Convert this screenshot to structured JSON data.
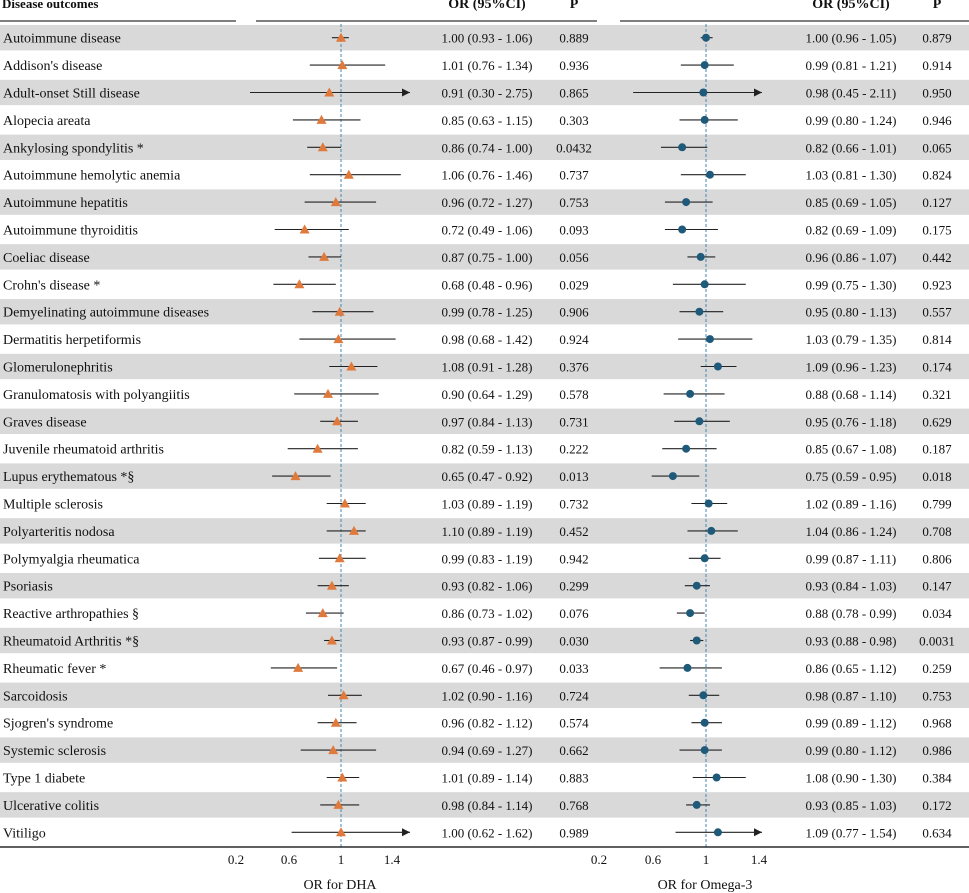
{
  "header": {
    "outcome_label": "Disease outcomes",
    "or_label_left": "OR (95%CI)",
    "p_label_left": "P",
    "or_label_right": "OR (95%CI)",
    "p_label_right": "P"
  },
  "axes": {
    "dha_xlabel": "OR for DHA",
    "omega_xlabel": "OR for Omega-3",
    "ticks": [
      "0.2",
      "0.6",
      "1",
      "1.4"
    ],
    "tick_values": [
      0.2,
      0.6,
      1.0,
      1.4
    ]
  },
  "colors": {
    "dha_marker": "#e07a3c",
    "omega_marker": "#1f5a7a",
    "stripe": "#d9d9d9",
    "reference_line": "#4a86b0",
    "ci_line": "#222222"
  },
  "chart_data": {
    "type": "forest",
    "reference_value": 1.0,
    "panels": [
      {
        "name": "OR for DHA",
        "marker": "triangle",
        "xlim": [
          0.2,
          1.4
        ]
      },
      {
        "name": "OR for Omega-3",
        "marker": "circle",
        "xlim": [
          0.2,
          1.4
        ]
      }
    ],
    "rows": [
      {
        "label": "Autoimmune disease",
        "dha": {
          "or": 1.0,
          "lo": 0.93,
          "hi": 1.06,
          "text": "1.00 (0.93 - 1.06)",
          "p": "0.889"
        },
        "omega": {
          "or": 1.0,
          "lo": 0.96,
          "hi": 1.05,
          "text": "1.00 (0.96 - 1.05)",
          "p": "0.879"
        }
      },
      {
        "label": "Addison's disease",
        "dha": {
          "or": 1.01,
          "lo": 0.76,
          "hi": 1.34,
          "text": "1.01 (0.76 - 1.34)",
          "p": "0.936"
        },
        "omega": {
          "or": 0.99,
          "lo": 0.81,
          "hi": 1.21,
          "text": "0.99 (0.81 - 1.21)",
          "p": "0.914"
        }
      },
      {
        "label": "Adult-onset Still disease",
        "dha": {
          "or": 0.91,
          "lo": 0.3,
          "hi": 2.75,
          "text": "0.91 (0.30 - 2.75)",
          "p": "0.865"
        },
        "omega": {
          "or": 0.98,
          "lo": 0.45,
          "hi": 2.11,
          "text": "0.98 (0.45 - 2.11)",
          "p": "0.950"
        }
      },
      {
        "label": "Alopecia areata",
        "dha": {
          "or": 0.85,
          "lo": 0.63,
          "hi": 1.15,
          "text": "0.85 (0.63 - 1.15)",
          "p": "0.303"
        },
        "omega": {
          "or": 0.99,
          "lo": 0.8,
          "hi": 1.24,
          "text": "0.99 (0.80 - 1.24)",
          "p": "0.946"
        }
      },
      {
        "label": "Ankylosing spondylitis *",
        "dha": {
          "or": 0.86,
          "lo": 0.74,
          "hi": 1.0,
          "text": "0.86 (0.74 - 1.00)",
          "p": "0.0432"
        },
        "omega": {
          "or": 0.82,
          "lo": 0.66,
          "hi": 1.01,
          "text": "0.82 (0.66 - 1.01)",
          "p": "0.065"
        }
      },
      {
        "label": "Autoimmune hemolytic anemia",
        "dha": {
          "or": 1.06,
          "lo": 0.76,
          "hi": 1.46,
          "text": "1.06 (0.76 - 1.46)",
          "p": "0.737"
        },
        "omega": {
          "or": 1.03,
          "lo": 0.81,
          "hi": 1.3,
          "text": "1.03 (0.81 - 1.30)",
          "p": "0.824"
        }
      },
      {
        "label": "Autoimmune hepatitis",
        "dha": {
          "or": 0.96,
          "lo": 0.72,
          "hi": 1.27,
          "text": "0.96 (0.72 - 1.27)",
          "p": "0.753"
        },
        "omega": {
          "or": 0.85,
          "lo": 0.69,
          "hi": 1.05,
          "text": "0.85 (0.69 - 1.05)",
          "p": "0.127"
        }
      },
      {
        "label": "Autoimmune thyroiditis",
        "dha": {
          "or": 0.72,
          "lo": 0.49,
          "hi": 1.06,
          "text": "0.72 (0.49 - 1.06)",
          "p": "0.093"
        },
        "omega": {
          "or": 0.82,
          "lo": 0.69,
          "hi": 1.09,
          "text": "0.82 (0.69 - 1.09)",
          "p": "0.175"
        }
      },
      {
        "label": "Coeliac disease",
        "dha": {
          "or": 0.87,
          "lo": 0.75,
          "hi": 1.0,
          "text": "0.87 (0.75 - 1.00)",
          "p": "0.056"
        },
        "omega": {
          "or": 0.96,
          "lo": 0.86,
          "hi": 1.07,
          "text": "0.96 (0.86 - 1.07)",
          "p": "0.442"
        }
      },
      {
        "label": "Crohn's disease *",
        "dha": {
          "or": 0.68,
          "lo": 0.48,
          "hi": 0.96,
          "text": "0.68 (0.48 - 0.96)",
          "p": "0.029"
        },
        "omega": {
          "or": 0.99,
          "lo": 0.75,
          "hi": 1.3,
          "text": "0.99 (0.75 - 1.30)",
          "p": "0.923"
        }
      },
      {
        "label": "Demyelinating autoimmune diseases",
        "dha": {
          "or": 0.99,
          "lo": 0.78,
          "hi": 1.25,
          "text": "0.99 (0.78 - 1.25)",
          "p": "0.906"
        },
        "omega": {
          "or": 0.95,
          "lo": 0.8,
          "hi": 1.13,
          "text": "0.95 (0.80 - 1.13)",
          "p": "0.557"
        }
      },
      {
        "label": "Dermatitis herpetiformis",
        "dha": {
          "or": 0.98,
          "lo": 0.68,
          "hi": 1.42,
          "text": "0.98 (0.68 - 1.42)",
          "p": "0.924"
        },
        "omega": {
          "or": 1.03,
          "lo": 0.79,
          "hi": 1.35,
          "text": "1.03 (0.79 - 1.35)",
          "p": "0.814"
        }
      },
      {
        "label": "Glomerulonephritis",
        "dha": {
          "or": 1.08,
          "lo": 0.91,
          "hi": 1.28,
          "text": "1.08 (0.91 - 1.28)",
          "p": "0.376"
        },
        "omega": {
          "or": 1.09,
          "lo": 0.96,
          "hi": 1.23,
          "text": "1.09 (0.96 - 1.23)",
          "p": "0.174"
        }
      },
      {
        "label": "Granulomatosis with polyangiitis",
        "dha": {
          "or": 0.9,
          "lo": 0.64,
          "hi": 1.29,
          "text": "0.90 (0.64 - 1.29)",
          "p": "0.578"
        },
        "omega": {
          "or": 0.88,
          "lo": 0.68,
          "hi": 1.14,
          "text": "0.88 (0.68 - 1.14)",
          "p": "0.321"
        }
      },
      {
        "label": "Graves disease",
        "dha": {
          "or": 0.97,
          "lo": 0.84,
          "hi": 1.13,
          "text": "0.97 (0.84 - 1.13)",
          "p": "0.731"
        },
        "omega": {
          "or": 0.95,
          "lo": 0.76,
          "hi": 1.18,
          "text": "0.95 (0.76 - 1.18)",
          "p": "0.629"
        }
      },
      {
        "label": "Juvenile rheumatoid arthritis",
        "dha": {
          "or": 0.82,
          "lo": 0.59,
          "hi": 1.13,
          "text": "0.82 (0.59 - 1.13)",
          "p": "0.222"
        },
        "omega": {
          "or": 0.85,
          "lo": 0.67,
          "hi": 1.08,
          "text": "0.85 (0.67 - 1.08)",
          "p": "0.187"
        }
      },
      {
        "label": "Lupus erythematous *§",
        "dha": {
          "or": 0.65,
          "lo": 0.47,
          "hi": 0.92,
          "text": "0.65 (0.47 - 0.92)",
          "p": "0.013"
        },
        "omega": {
          "or": 0.75,
          "lo": 0.59,
          "hi": 0.95,
          "text": "0.75 (0.59 - 0.95)",
          "p": "0.018"
        }
      },
      {
        "label": "Multiple sclerosis",
        "dha": {
          "or": 1.03,
          "lo": 0.89,
          "hi": 1.19,
          "text": "1.03 (0.89 - 1.19)",
          "p": "0.732"
        },
        "omega": {
          "or": 1.02,
          "lo": 0.89,
          "hi": 1.16,
          "text": "1.02 (0.89 - 1.16)",
          "p": "0.799"
        }
      },
      {
        "label": "Polyarteritis nodosa",
        "dha": {
          "or": 1.1,
          "lo": 0.89,
          "hi": 1.19,
          "text": "1.10 (0.89 - 1.19)",
          "p": "0.452"
        },
        "omega": {
          "or": 1.04,
          "lo": 0.86,
          "hi": 1.24,
          "text": "1.04 (0.86 - 1.24)",
          "p": "0.708"
        }
      },
      {
        "label": "Polymyalgia rheumatica",
        "dha": {
          "or": 0.99,
          "lo": 0.83,
          "hi": 1.19,
          "text": "0.99 (0.83 - 1.19)",
          "p": "0.942"
        },
        "omega": {
          "or": 0.99,
          "lo": 0.87,
          "hi": 1.11,
          "text": "0.99 (0.87 - 1.11)",
          "p": "0.806"
        }
      },
      {
        "label": "Psoriasis",
        "dha": {
          "or": 0.93,
          "lo": 0.82,
          "hi": 1.06,
          "text": "0.93 (0.82 - 1.06)",
          "p": "0.299"
        },
        "omega": {
          "or": 0.93,
          "lo": 0.84,
          "hi": 1.03,
          "text": "0.93 (0.84 - 1.03)",
          "p": "0.147"
        }
      },
      {
        "label": "Reactive arthropathies §",
        "dha": {
          "or": 0.86,
          "lo": 0.73,
          "hi": 1.02,
          "text": "0.86 (0.73 - 1.02)",
          "p": "0.076"
        },
        "omega": {
          "or": 0.88,
          "lo": 0.78,
          "hi": 0.99,
          "text": "0.88 (0.78 - 0.99)",
          "p": "0.034"
        }
      },
      {
        "label": "Rheumatoid Arthritis *§",
        "dha": {
          "or": 0.93,
          "lo": 0.87,
          "hi": 0.99,
          "text": "0.93 (0.87 - 0.99)",
          "p": "0.030"
        },
        "omega": {
          "or": 0.93,
          "lo": 0.88,
          "hi": 0.98,
          "text": "0.93 (0.88 - 0.98)",
          "p": "0.0031"
        }
      },
      {
        "label": "Rheumatic fever *",
        "dha": {
          "or": 0.67,
          "lo": 0.46,
          "hi": 0.97,
          "text": "0.67 (0.46 - 0.97)",
          "p": "0.033"
        },
        "omega": {
          "or": 0.86,
          "lo": 0.65,
          "hi": 1.12,
          "text": "0.86 (0.65 - 1.12)",
          "p": "0.259"
        }
      },
      {
        "label": "Sarcoidosis",
        "dha": {
          "or": 1.02,
          "lo": 0.9,
          "hi": 1.16,
          "text": "1.02 (0.90 - 1.16)",
          "p": "0.724"
        },
        "omega": {
          "or": 0.98,
          "lo": 0.87,
          "hi": 1.1,
          "text": "0.98 (0.87 - 1.10)",
          "p": "0.753"
        }
      },
      {
        "label": "Sjogren's syndrome",
        "dha": {
          "or": 0.96,
          "lo": 0.82,
          "hi": 1.12,
          "text": "0.96 (0.82 - 1.12)",
          "p": "0.574"
        },
        "omega": {
          "or": 0.99,
          "lo": 0.89,
          "hi": 1.12,
          "text": "0.99 (0.89 - 1.12)",
          "p": "0.968"
        }
      },
      {
        "label": "Systemic sclerosis",
        "dha": {
          "or": 0.94,
          "lo": 0.69,
          "hi": 1.27,
          "text": "0.94 (0.69 - 1.27)",
          "p": "0.662"
        },
        "omega": {
          "or": 0.99,
          "lo": 0.8,
          "hi": 1.12,
          "text": "0.99 (0.80 - 1.12)",
          "p": "0.986"
        }
      },
      {
        "label": "Type 1 diabete",
        "dha": {
          "or": 1.01,
          "lo": 0.89,
          "hi": 1.14,
          "text": "1.01 (0.89 - 1.14)",
          "p": "0.883"
        },
        "omega": {
          "or": 1.08,
          "lo": 0.9,
          "hi": 1.3,
          "text": "1.08 (0.90 - 1.30)",
          "p": "0.384"
        }
      },
      {
        "label": "Ulcerative colitis",
        "dha": {
          "or": 0.98,
          "lo": 0.84,
          "hi": 1.14,
          "text": "0.98 (0.84 - 1.14)",
          "p": "0.768"
        },
        "omega": {
          "or": 0.93,
          "lo": 0.85,
          "hi": 1.03,
          "text": "0.93 (0.85 - 1.03)",
          "p": "0.172"
        }
      },
      {
        "label": "Vitiligo",
        "dha": {
          "or": 1.0,
          "lo": 0.62,
          "hi": 1.62,
          "text": "1.00 (0.62 - 1.62)",
          "p": "0.989"
        },
        "omega": {
          "or": 1.09,
          "lo": 0.77,
          "hi": 1.54,
          "text": "1.09 (0.77 - 1.54)",
          "p": "0.634"
        }
      }
    ]
  }
}
